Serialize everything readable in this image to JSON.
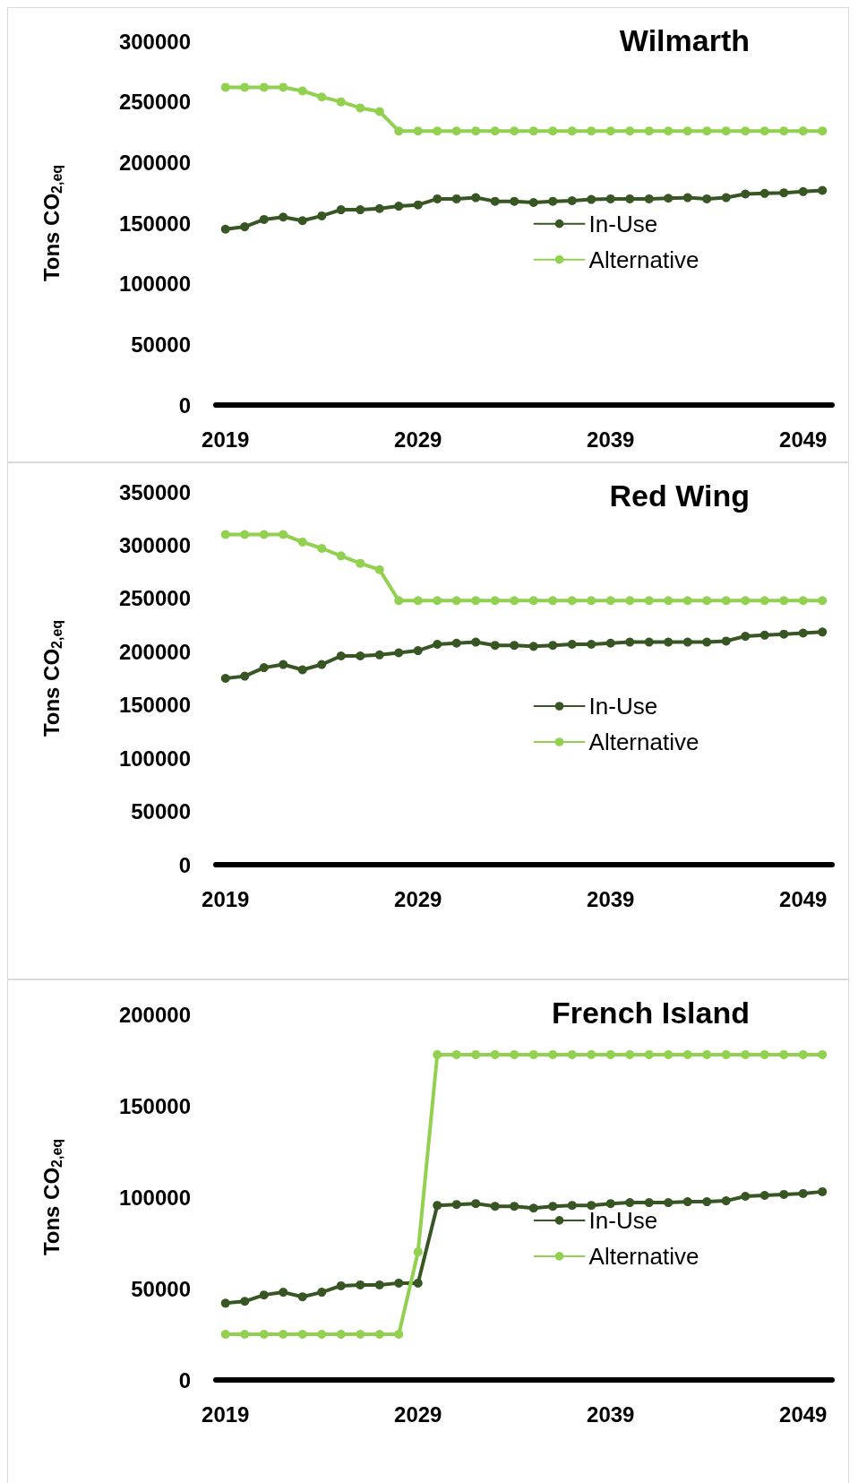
{
  "chart_data": [
    {
      "type": "line",
      "title": "Wilmarth",
      "ylabel": "Tons CO$_{2,eq}$",
      "x": [
        2019,
        2020,
        2021,
        2022,
        2023,
        2024,
        2025,
        2026,
        2027,
        2028,
        2029,
        2030,
        2031,
        2032,
        2033,
        2034,
        2035,
        2036,
        2037,
        2038,
        2039,
        2040,
        2041,
        2042,
        2043,
        2044,
        2045,
        2046,
        2047,
        2048,
        2049,
        2050
      ],
      "xlim": [
        2018.5,
        2050.5
      ],
      "xticks": [
        2019,
        2029,
        2039,
        2049
      ],
      "ylim": [
        0,
        300000
      ],
      "yticks": [
        0,
        50000,
        100000,
        150000,
        200000,
        250000,
        300000
      ],
      "grid": false,
      "legend": "center right",
      "marker": "circle",
      "line_style": "solid",
      "series": [
        {
          "name": "In-Use",
          "color": "#375623",
          "values": [
            145000,
            147000,
            153000,
            155000,
            152000,
            156000,
            161000,
            161000,
            162000,
            164000,
            165000,
            170000,
            170000,
            171000,
            168000,
            168000,
            167000,
            168000,
            168500,
            169500,
            170000,
            170000,
            170000,
            170500,
            171000,
            170000,
            171000,
            174000,
            174500,
            175000,
            176000,
            177000
          ]
        },
        {
          "name": "Alternative",
          "color": "#92d050",
          "values": [
            262000,
            262000,
            262000,
            262000,
            259000,
            254000,
            250000,
            245000,
            242000,
            226000,
            226000,
            226000,
            226000,
            226000,
            226000,
            226000,
            226000,
            226000,
            226000,
            226000,
            226000,
            226000,
            226000,
            226000,
            226000,
            226000,
            226000,
            226000,
            226000,
            226000,
            226000,
            226000
          ]
        }
      ]
    },
    {
      "type": "line",
      "title": "Red Wing",
      "ylabel": "Tons CO$_{2,eq}$",
      "x": [
        2019,
        2020,
        2021,
        2022,
        2023,
        2024,
        2025,
        2026,
        2027,
        2028,
        2029,
        2030,
        2031,
        2032,
        2033,
        2034,
        2035,
        2036,
        2037,
        2038,
        2039,
        2040,
        2041,
        2042,
        2043,
        2044,
        2045,
        2046,
        2047,
        2048,
        2049,
        2050
      ],
      "xlim": [
        2018.5,
        2050.5
      ],
      "xticks": [
        2019,
        2029,
        2039,
        2049
      ],
      "ylim": [
        0,
        350000
      ],
      "yticks": [
        0,
        50000,
        100000,
        150000,
        200000,
        250000,
        300000,
        350000
      ],
      "grid": false,
      "legend": "center right",
      "marker": "circle",
      "line_style": "solid",
      "series": [
        {
          "name": "In-Use",
          "color": "#375623",
          "values": [
            175000,
            177000,
            185000,
            188000,
            183000,
            188000,
            196000,
            196000,
            197000,
            199000,
            201000,
            207000,
            208000,
            209000,
            206000,
            206000,
            205000,
            206000,
            207000,
            207000,
            208000,
            209000,
            209000,
            209000,
            209000,
            209000,
            210000,
            214500,
            215500,
            216500,
            217500,
            218500
          ]
        },
        {
          "name": "Alternative",
          "color": "#92d050",
          "values": [
            310000,
            310000,
            310000,
            310000,
            303000,
            297000,
            290000,
            283000,
            277000,
            248000,
            248000,
            248000,
            248000,
            248000,
            248000,
            248000,
            248000,
            248000,
            248000,
            248000,
            248000,
            248000,
            248000,
            248000,
            248000,
            248000,
            248000,
            248000,
            248000,
            248000,
            248000,
            248000
          ]
        }
      ]
    },
    {
      "type": "line",
      "title": "French Island",
      "ylabel": "Tons CO$_{2,eq}$",
      "x": [
        2019,
        2020,
        2021,
        2022,
        2023,
        2024,
        2025,
        2026,
        2027,
        2028,
        2029,
        2030,
        2031,
        2032,
        2033,
        2034,
        2035,
        2036,
        2037,
        2038,
        2039,
        2040,
        2041,
        2042,
        2043,
        2044,
        2045,
        2046,
        2047,
        2048,
        2049,
        2050
      ],
      "xlim": [
        2018.5,
        2050.5
      ],
      "xticks": [
        2019,
        2029,
        2039,
        2049
      ],
      "ylim": [
        0,
        200000
      ],
      "yticks": [
        0,
        50000,
        100000,
        150000,
        200000
      ],
      "grid": false,
      "legend": "center right",
      "marker": "circle",
      "line_style": "solid",
      "series": [
        {
          "name": "In-Use",
          "color": "#375623",
          "values": [
            42000,
            43000,
            46500,
            48000,
            45500,
            48000,
            51500,
            52000,
            52000,
            53000,
            53000,
            95500,
            96000,
            96500,
            95000,
            95000,
            94000,
            95000,
            95500,
            95500,
            96500,
            97000,
            97000,
            97000,
            97500,
            97500,
            98000,
            100500,
            101000,
            101500,
            102000,
            103000
          ]
        },
        {
          "name": "Alternative",
          "color": "#92d050",
          "values": [
            25000,
            25000,
            25000,
            25000,
            25000,
            25000,
            25000,
            25000,
            25000,
            25000,
            70000,
            178000,
            178000,
            178000,
            178000,
            178000,
            178000,
            178000,
            178000,
            178000,
            178000,
            178000,
            178000,
            178000,
            178000,
            178000,
            178000,
            178000,
            178000,
            178000,
            178000,
            178000
          ]
        }
      ]
    }
  ]
}
